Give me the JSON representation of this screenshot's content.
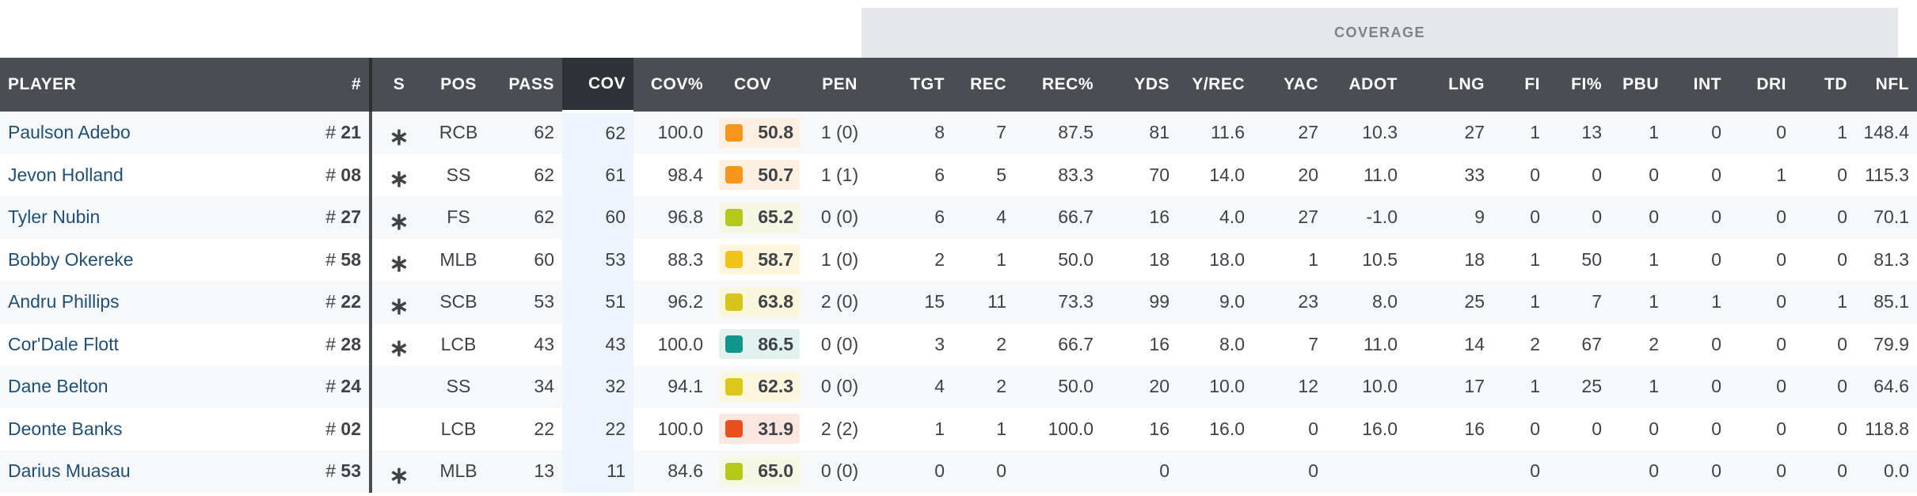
{
  "group": {
    "coverage_label": "COVERAGE"
  },
  "columns": [
    "PLAYER",
    "#",
    "S",
    "POS",
    "PASS",
    "COV",
    "COV%",
    "COV",
    "PEN",
    "TGT",
    "REC",
    "REC%",
    "YDS",
    "Y/REC",
    "YAC",
    "ADOT",
    "LNG",
    "FI",
    "FI%",
    "PBU",
    "INT",
    "DRI",
    "TD",
    "NFL"
  ],
  "colors": {
    "header_bg": "#4a4d52",
    "grade_orange": "#f7941d",
    "grade_lime": "#b5c918",
    "grade_yellow": "#f0c419",
    "grade_teal": "#12958a",
    "grade_red": "#e8511d"
  },
  "rows": [
    {
      "player": "Paulson Adebo",
      "hash": "#",
      "num": "21",
      "s": "∗",
      "pos": "RCB",
      "pass": "62",
      "cov": "62",
      "cov_pct": "100.0",
      "grade": "50.8",
      "grade_color": "#f7941d",
      "grade_bg": "#fdf0e0",
      "pen": "1 (0)",
      "tgt": "8",
      "rec": "7",
      "rec_pct": "87.5",
      "yds": "81",
      "yrec": "11.6",
      "yac": "27",
      "adot": "10.3",
      "lng": "27",
      "fi": "1",
      "fi_pct": "13",
      "pbu": "1",
      "int": "0",
      "dri": "0",
      "td": "1",
      "nfl": "148.4"
    },
    {
      "player": "Jevon Holland",
      "hash": "#",
      "num": "08",
      "s": "∗",
      "pos": "SS",
      "pass": "62",
      "cov": "61",
      "cov_pct": "98.4",
      "grade": "50.7",
      "grade_color": "#f7941d",
      "grade_bg": "#fdf0e0",
      "pen": "1 (1)",
      "tgt": "6",
      "rec": "5",
      "rec_pct": "83.3",
      "yds": "70",
      "yrec": "14.0",
      "yac": "20",
      "adot": "11.0",
      "lng": "33",
      "fi": "0",
      "fi_pct": "0",
      "pbu": "0",
      "int": "0",
      "dri": "1",
      "td": "0",
      "nfl": "115.3"
    },
    {
      "player": "Tyler Nubin",
      "hash": "#",
      "num": "27",
      "s": "∗",
      "pos": "FS",
      "pass": "62",
      "cov": "60",
      "cov_pct": "96.8",
      "grade": "65.2",
      "grade_color": "#b5c918",
      "grade_bg": "#f5f7e2",
      "pen": "0 (0)",
      "tgt": "6",
      "rec": "4",
      "rec_pct": "66.7",
      "yds": "16",
      "yrec": "4.0",
      "yac": "27",
      "adot": "-1.0",
      "lng": "9",
      "fi": "0",
      "fi_pct": "0",
      "pbu": "0",
      "int": "0",
      "dri": "0",
      "td": "0",
      "nfl": "70.1"
    },
    {
      "player": "Bobby Okereke",
      "hash": "#",
      "num": "58",
      "s": "∗",
      "pos": "MLB",
      "pass": "60",
      "cov": "53",
      "cov_pct": "88.3",
      "grade": "58.7",
      "grade_color": "#f0c419",
      "grade_bg": "#fdf6dd",
      "pen": "1 (0)",
      "tgt": "2",
      "rec": "1",
      "rec_pct": "50.0",
      "yds": "18",
      "yrec": "18.0",
      "yac": "1",
      "adot": "10.5",
      "lng": "18",
      "fi": "1",
      "fi_pct": "50",
      "pbu": "1",
      "int": "0",
      "dri": "0",
      "td": "0",
      "nfl": "81.3"
    },
    {
      "player": "Andru Phillips",
      "hash": "#",
      "num": "22",
      "s": "∗",
      "pos": "SCB",
      "pass": "53",
      "cov": "51",
      "cov_pct": "96.2",
      "grade": "63.8",
      "grade_color": "#d6c61a",
      "grade_bg": "#faf6dc",
      "pen": "2 (0)",
      "tgt": "15",
      "rec": "11",
      "rec_pct": "73.3",
      "yds": "99",
      "yrec": "9.0",
      "yac": "23",
      "adot": "8.0",
      "lng": "25",
      "fi": "1",
      "fi_pct": "7",
      "pbu": "1",
      "int": "1",
      "dri": "0",
      "td": "1",
      "nfl": "85.1"
    },
    {
      "player": "Cor'Dale Flott",
      "hash": "#",
      "num": "28",
      "s": "∗",
      "pos": "LCB",
      "pass": "43",
      "cov": "43",
      "cov_pct": "100.0",
      "grade": "86.5",
      "grade_color": "#12958a",
      "grade_bg": "#e1f1ee",
      "pen": "0 (0)",
      "tgt": "3",
      "rec": "2",
      "rec_pct": "66.7",
      "yds": "16",
      "yrec": "8.0",
      "yac": "7",
      "adot": "11.0",
      "lng": "14",
      "fi": "2",
      "fi_pct": "67",
      "pbu": "2",
      "int": "0",
      "dri": "0",
      "td": "0",
      "nfl": "79.9"
    },
    {
      "player": "Dane Belton",
      "hash": "#",
      "num": "24",
      "s": "",
      "pos": "SS",
      "pass": "34",
      "cov": "32",
      "cov_pct": "94.1",
      "grade": "62.3",
      "grade_color": "#dcc61a",
      "grade_bg": "#fbf6dc",
      "pen": "0 (0)",
      "tgt": "4",
      "rec": "2",
      "rec_pct": "50.0",
      "yds": "20",
      "yrec": "10.0",
      "yac": "12",
      "adot": "10.0",
      "lng": "17",
      "fi": "1",
      "fi_pct": "25",
      "pbu": "1",
      "int": "0",
      "dri": "0",
      "td": "0",
      "nfl": "64.6"
    },
    {
      "player": "Deonte Banks",
      "hash": "#",
      "num": "02",
      "s": "",
      "pos": "LCB",
      "pass": "22",
      "cov": "22",
      "cov_pct": "100.0",
      "grade": "31.9",
      "grade_color": "#e8511d",
      "grade_bg": "#fbe7df",
      "pen": "2 (2)",
      "tgt": "1",
      "rec": "1",
      "rec_pct": "100.0",
      "yds": "16",
      "yrec": "16.0",
      "yac": "0",
      "adot": "16.0",
      "lng": "16",
      "fi": "0",
      "fi_pct": "0",
      "pbu": "0",
      "int": "0",
      "dri": "0",
      "td": "0",
      "nfl": "118.8"
    },
    {
      "player": "Darius Muasau",
      "hash": "#",
      "num": "53",
      "s": "∗",
      "pos": "MLB",
      "pass": "13",
      "cov": "11",
      "cov_pct": "84.6",
      "grade": "65.0",
      "grade_color": "#b5c918",
      "grade_bg": "#f5f7e2",
      "pen": "0 (0)",
      "tgt": "0",
      "rec": "0",
      "rec_pct": "",
      "yds": "0",
      "yrec": "",
      "yac": "0",
      "adot": "",
      "lng": "",
      "fi": "0",
      "fi_pct": "",
      "pbu": "0",
      "int": "0",
      "dri": "0",
      "td": "0",
      "nfl": "0.0"
    }
  ]
}
